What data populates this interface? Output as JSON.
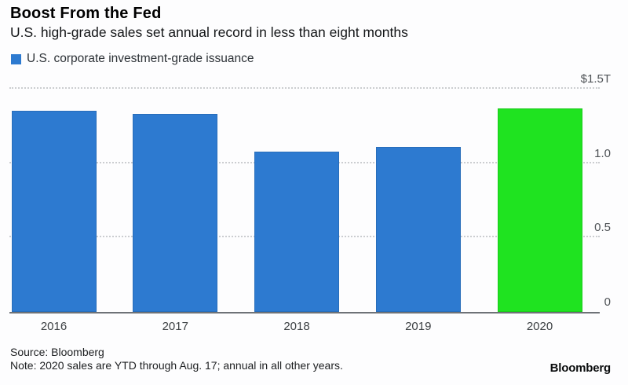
{
  "header": {
    "title": "Boost From the Fed",
    "subtitle": "U.S. high-grade sales set annual record in less than eight months"
  },
  "legend": {
    "label": "U.S. corporate investment-grade issuance",
    "swatch_color": "#2d7ad0"
  },
  "chart_data": {
    "type": "bar",
    "title": "Boost From the Fed",
    "subtitle": "U.S. high-grade sales set annual record in less than eight months",
    "series_name": "U.S. corporate investment-grade issuance",
    "categories": [
      "2016",
      "2017",
      "2018",
      "2019",
      "2020"
    ],
    "values": [
      1.35,
      1.33,
      1.08,
      1.11,
      1.37
    ],
    "unit": "trillions of U.S. dollars",
    "bar_colors": [
      "#2d7ad0",
      "#2d7ad0",
      "#2d7ad0",
      "#2d7ad0",
      "#1fe320"
    ],
    "highlight_category": "2020",
    "ylim": [
      0,
      1.5
    ],
    "yticks": [
      0,
      0.5,
      1.0,
      1.5
    ],
    "ytick_labels": [
      "0",
      "0.5",
      "1.0",
      "$1.5T"
    ],
    "axis_side": "right",
    "grid": "horizontal-dotted"
  },
  "footer": {
    "source": "Source: Bloomberg",
    "note": "Note: 2020 sales are YTD through Aug. 17; annual in all other years.",
    "brand": "Bloomberg"
  },
  "colors": {
    "bar_blue": "#2d7ad0",
    "bar_green": "#1fe320",
    "baseline": "#6e7277",
    "gridline": "#cbcdd0",
    "tick_text": "#4f5357"
  }
}
